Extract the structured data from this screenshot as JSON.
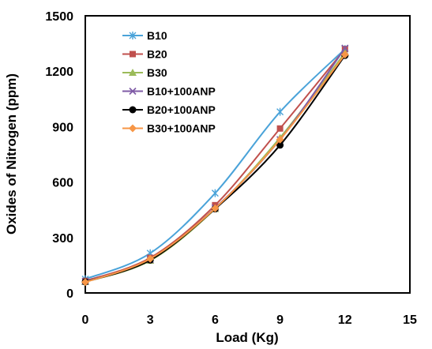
{
  "chart_data": {
    "type": "line",
    "xlabel": "Load (Kg)",
    "ylabel": "Oxides of Nitrogen (ppm)",
    "xlim": [
      0,
      15
    ],
    "ylim": [
      0,
      1500
    ],
    "xticks": [
      "0",
      "3",
      "6",
      "9",
      "12",
      "15"
    ],
    "yticks": [
      "0",
      "300",
      "600",
      "900",
      "1200",
      "1500"
    ],
    "legend_position": "top-left",
    "grid": false,
    "x": [
      0,
      3,
      6,
      9,
      12
    ],
    "series": [
      {
        "name": "B10",
        "color": "#4aa3d9",
        "marker": "star",
        "values": [
          75,
          215,
          540,
          980,
          1320
        ]
      },
      {
        "name": "B20",
        "color": "#c0504d",
        "marker": "square",
        "values": [
          65,
          190,
          475,
          890,
          1320
        ]
      },
      {
        "name": "B30",
        "color": "#9bbb59",
        "marker": "triangle",
        "values": [
          60,
          175,
          455,
          840,
          1300
        ]
      },
      {
        "name": "B10+100ANP",
        "color": "#7f5ba6",
        "marker": "x",
        "values": [
          62,
          180,
          460,
          830,
          1325
        ]
      },
      {
        "name": "B20+100ANP",
        "color": "#000000",
        "marker": "circle",
        "values": [
          60,
          178,
          455,
          800,
          1285
        ]
      },
      {
        "name": "B30+100ANP",
        "color": "#f79646",
        "marker": "diamond",
        "values": [
          58,
          185,
          458,
          830,
          1290
        ]
      }
    ]
  }
}
